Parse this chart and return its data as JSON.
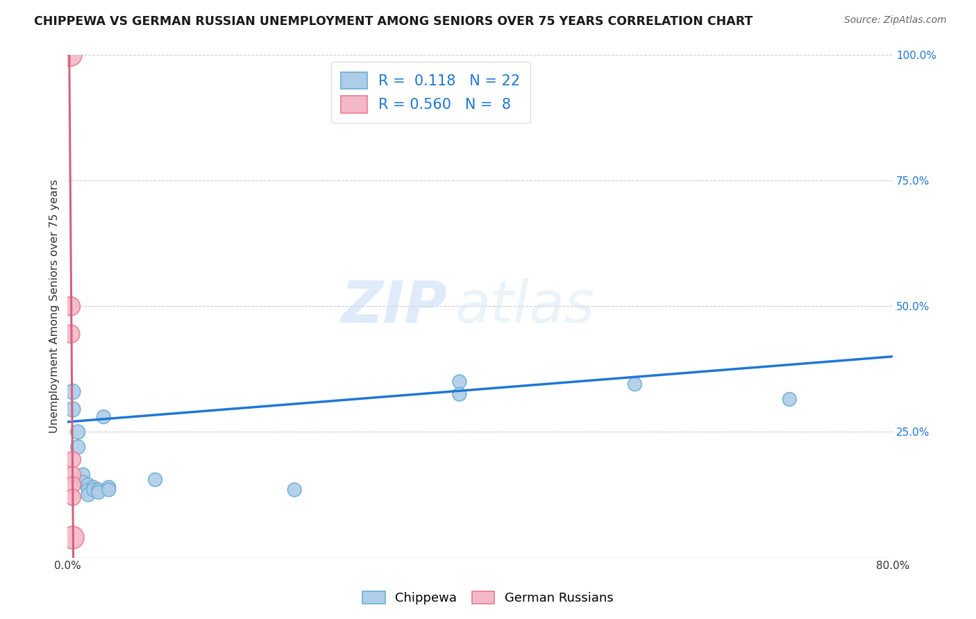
{
  "title": "CHIPPEWA VS GERMAN RUSSIAN UNEMPLOYMENT AMONG SENIORS OVER 75 YEARS CORRELATION CHART",
  "source": "Source: ZipAtlas.com",
  "ylabel": "Unemployment Among Seniors over 75 years",
  "xlim": [
    0.0,
    0.8
  ],
  "ylim": [
    0.0,
    1.0
  ],
  "xticks": [
    0.0,
    0.1,
    0.2,
    0.3,
    0.4,
    0.5,
    0.6,
    0.7,
    0.8
  ],
  "xticklabels": [
    "0.0%",
    "",
    "",
    "",
    "",
    "",
    "",
    "",
    "80.0%"
  ],
  "yticks": [
    0.0,
    0.25,
    0.5,
    0.75,
    1.0
  ],
  "yticklabels": [
    "",
    "25.0%",
    "50.0%",
    "75.0%",
    "100.0%"
  ],
  "watermark_zip": "ZIP",
  "watermark_atlas": "atlas",
  "chippewa_color": "#aecde8",
  "chippewa_edge": "#6aaed6",
  "german_color": "#f4b8c8",
  "german_edge": "#e87a90",
  "trend_blue": "#1f77d4",
  "trend_pink": "#d4607a",
  "R_chippewa": 0.118,
  "N_chippewa": 22,
  "R_german": 0.56,
  "N_german": 8,
  "chippewa_x": [
    0.005,
    0.005,
    0.01,
    0.01,
    0.015,
    0.015,
    0.02,
    0.02,
    0.02,
    0.025,
    0.025,
    0.03,
    0.03,
    0.035,
    0.04,
    0.04,
    0.085,
    0.22,
    0.38,
    0.38,
    0.55,
    0.7
  ],
  "chippewa_y": [
    0.33,
    0.295,
    0.25,
    0.22,
    0.165,
    0.15,
    0.145,
    0.135,
    0.125,
    0.14,
    0.135,
    0.135,
    0.13,
    0.28,
    0.14,
    0.135,
    0.155,
    0.135,
    0.35,
    0.325,
    0.345,
    0.315
  ],
  "german_x": [
    0.003,
    0.003,
    0.003,
    0.005,
    0.005,
    0.005,
    0.005,
    0.005
  ],
  "german_y": [
    1.0,
    0.5,
    0.445,
    0.195,
    0.165,
    0.145,
    0.12,
    0.04
  ],
  "chippewa_sizes": [
    250,
    250,
    220,
    220,
    200,
    200,
    200,
    200,
    200,
    200,
    200,
    200,
    200,
    200,
    200,
    200,
    200,
    200,
    200,
    200,
    200,
    200
  ],
  "german_sizes": [
    550,
    380,
    350,
    280,
    280,
    280,
    280,
    550
  ]
}
